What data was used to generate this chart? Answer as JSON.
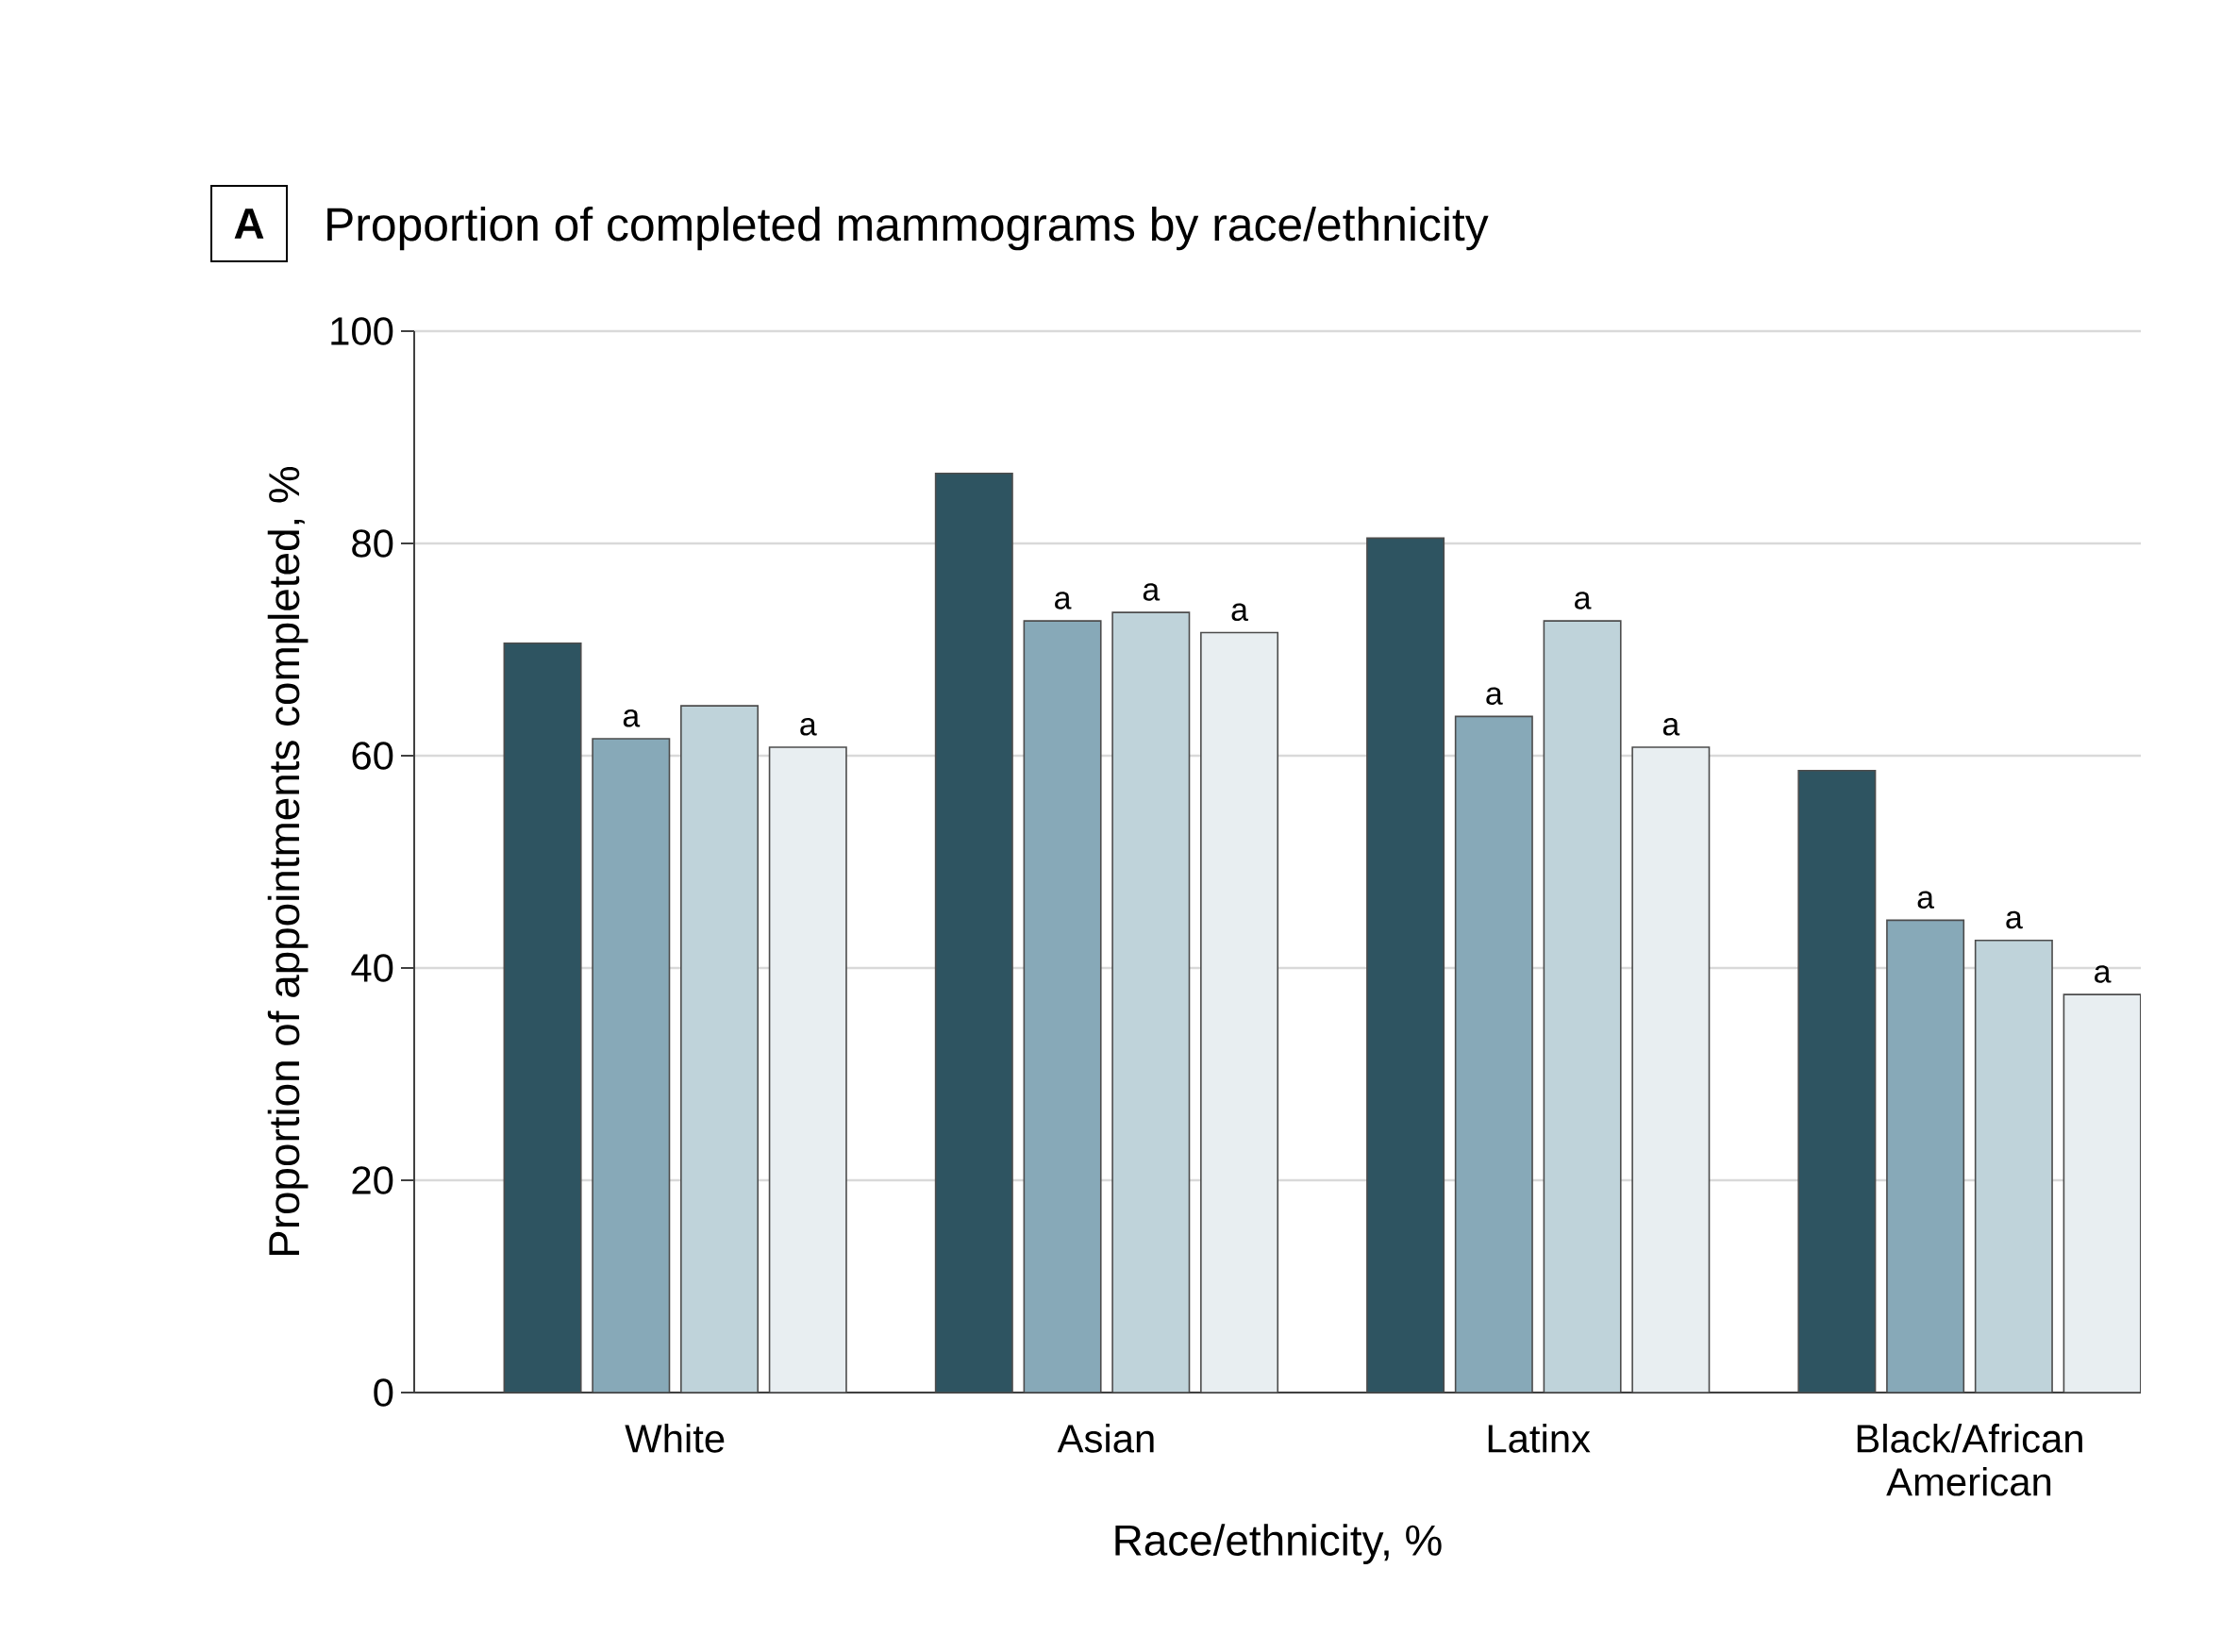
{
  "chart_data": {
    "type": "bar",
    "title": "Proportion of completed mammograms by race/ethnicity",
    "xlabel": "Race/ethnicity, %",
    "ylabel": "Proportion of appointments completed, %",
    "categories": [
      "White",
      "Asian",
      "Latinx",
      "Black/African American"
    ],
    "series": [
      {
        "color": "#2e5461",
        "values": [
          70.6,
          86.6,
          80.5,
          58.6
        ]
      },
      {
        "color": "#87a9b8",
        "values": [
          61.6,
          72.7,
          63.7,
          44.5
        ],
        "value_labels": [
          "a",
          "a",
          "a",
          "a"
        ]
      },
      {
        "color": "#bfd3da",
        "values": [
          64.7,
          73.5,
          72.7,
          42.6
        ],
        "value_labels": [
          null,
          "a",
          "a",
          "a"
        ]
      },
      {
        "color": "#e8eef1",
        "values": [
          60.8,
          71.6,
          60.8,
          37.5
        ],
        "value_labels": [
          "a",
          "a",
          "a",
          "a"
        ]
      }
    ],
    "ylim": [
      0,
      100
    ],
    "yticks": [
      0,
      20,
      40,
      60,
      80,
      100
    ],
    "grid": "y",
    "annotations": [
      "A"
    ]
  }
}
